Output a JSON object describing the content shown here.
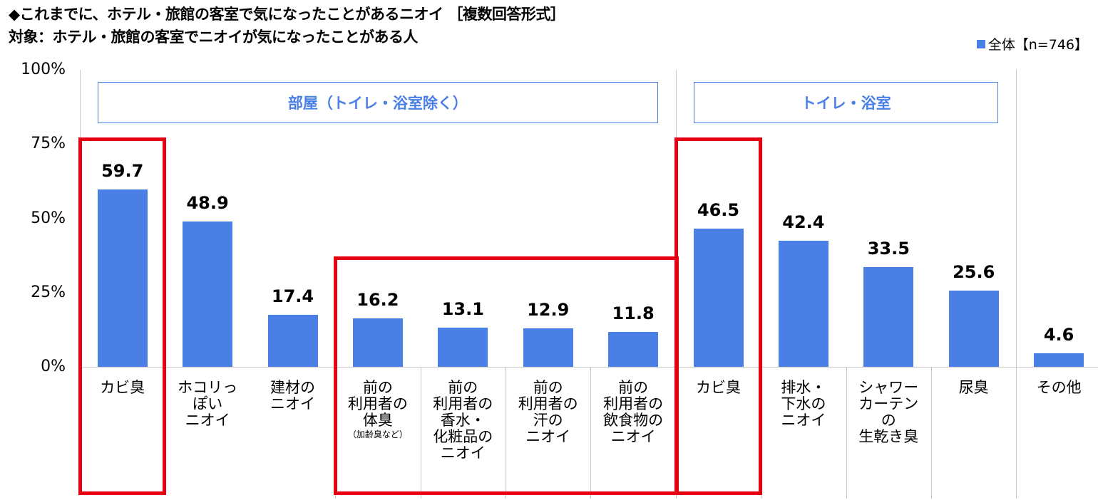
{
  "chart_data": {
    "type": "bar",
    "title": "◆これまでに、ホテル・旅館の客室で気になったことがあるニオイ ［複数回答形式］",
    "subtitle": "対象：ホテル・旅館の客室でニオイが気になったことがある人",
    "legend": "全体【n=746】",
    "ylim": [
      0,
      100
    ],
    "yticks": [
      "100%",
      "75%",
      "50%",
      "25%",
      "0%"
    ],
    "yticks_values": [
      100,
      75,
      50,
      25,
      0
    ],
    "groups": [
      "部屋（トイレ・浴室除く）",
      "トイレ・浴室"
    ],
    "categories": [
      {
        "lines": [
          "カビ臭"
        ],
        "note": ""
      },
      {
        "lines": [
          "ホコリっ",
          "ぽい",
          "ニオイ"
        ],
        "note": ""
      },
      {
        "lines": [
          "建材の",
          "ニオイ"
        ],
        "note": ""
      },
      {
        "lines": [
          "前の",
          "利用者の",
          "体臭"
        ],
        "note": "（加齢臭など）"
      },
      {
        "lines": [
          "前の",
          "利用者の",
          "香水・",
          "化粧品の",
          "ニオイ"
        ],
        "note": ""
      },
      {
        "lines": [
          "前の",
          "利用者の",
          "汗の",
          "ニオイ"
        ],
        "note": ""
      },
      {
        "lines": [
          "前の",
          "利用者の",
          "飲食物の",
          "ニオイ"
        ],
        "note": ""
      },
      {
        "lines": [
          "カビ臭"
        ],
        "note": ""
      },
      {
        "lines": [
          "排水・",
          "下水の",
          "ニオイ"
        ],
        "note": ""
      },
      {
        "lines": [
          "シャワー",
          "カーテン",
          "の",
          "生乾き臭"
        ],
        "note": ""
      },
      {
        "lines": [
          "尿臭"
        ],
        "note": ""
      },
      {
        "lines": [
          "その他"
        ],
        "note": ""
      }
    ],
    "series": [
      {
        "name": "全体【n=746】",
        "values": [
          59.7,
          48.9,
          17.4,
          16.2,
          13.1,
          12.9,
          11.8,
          46.5,
          42.4,
          33.5,
          25.6,
          4.6
        ]
      }
    ],
    "value_labels": [
      "59.7",
      "48.9",
      "17.4",
      "16.2",
      "13.1",
      "12.9",
      "11.8",
      "46.5",
      "42.4",
      "33.5",
      "25.6",
      "4.6"
    ],
    "colors": {
      "bar": "#4a7fe6",
      "highlight": "#e60012",
      "group_text": "#4a7fe6"
    },
    "highlighted_category_indices": [
      [
        0
      ],
      [
        3,
        6
      ],
      [
        7
      ]
    ]
  }
}
